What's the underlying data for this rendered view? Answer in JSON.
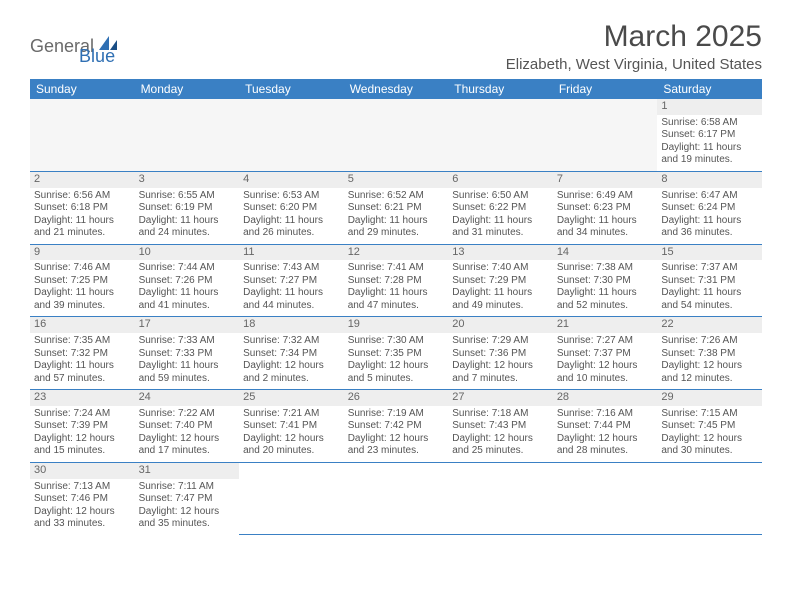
{
  "logo": {
    "part1": "General",
    "part2": "Blue"
  },
  "title": "March 2025",
  "location": "Elizabeth, West Virginia, United States",
  "colors": {
    "header_bg": "#3a80c4",
    "header_text": "#ffffff",
    "daynum_bg": "#eeeeee",
    "empty_bg": "#f6f6f6",
    "border": "#3a80c4",
    "text": "#555555",
    "logo_gray": "#6a6a6a",
    "logo_blue": "#2f6fb3"
  },
  "weekdays": [
    "Sunday",
    "Monday",
    "Tuesday",
    "Wednesday",
    "Thursday",
    "Friday",
    "Saturday"
  ],
  "weeks": [
    [
      null,
      null,
      null,
      null,
      null,
      null,
      {
        "n": "1",
        "sr": "Sunrise: 6:58 AM",
        "ss": "Sunset: 6:17 PM",
        "dl": "Daylight: 11 hours and 19 minutes."
      }
    ],
    [
      {
        "n": "2",
        "sr": "Sunrise: 6:56 AM",
        "ss": "Sunset: 6:18 PM",
        "dl": "Daylight: 11 hours and 21 minutes."
      },
      {
        "n": "3",
        "sr": "Sunrise: 6:55 AM",
        "ss": "Sunset: 6:19 PM",
        "dl": "Daylight: 11 hours and 24 minutes."
      },
      {
        "n": "4",
        "sr": "Sunrise: 6:53 AM",
        "ss": "Sunset: 6:20 PM",
        "dl": "Daylight: 11 hours and 26 minutes."
      },
      {
        "n": "5",
        "sr": "Sunrise: 6:52 AM",
        "ss": "Sunset: 6:21 PM",
        "dl": "Daylight: 11 hours and 29 minutes."
      },
      {
        "n": "6",
        "sr": "Sunrise: 6:50 AM",
        "ss": "Sunset: 6:22 PM",
        "dl": "Daylight: 11 hours and 31 minutes."
      },
      {
        "n": "7",
        "sr": "Sunrise: 6:49 AM",
        "ss": "Sunset: 6:23 PM",
        "dl": "Daylight: 11 hours and 34 minutes."
      },
      {
        "n": "8",
        "sr": "Sunrise: 6:47 AM",
        "ss": "Sunset: 6:24 PM",
        "dl": "Daylight: 11 hours and 36 minutes."
      }
    ],
    [
      {
        "n": "9",
        "sr": "Sunrise: 7:46 AM",
        "ss": "Sunset: 7:25 PM",
        "dl": "Daylight: 11 hours and 39 minutes."
      },
      {
        "n": "10",
        "sr": "Sunrise: 7:44 AM",
        "ss": "Sunset: 7:26 PM",
        "dl": "Daylight: 11 hours and 41 minutes."
      },
      {
        "n": "11",
        "sr": "Sunrise: 7:43 AM",
        "ss": "Sunset: 7:27 PM",
        "dl": "Daylight: 11 hours and 44 minutes."
      },
      {
        "n": "12",
        "sr": "Sunrise: 7:41 AM",
        "ss": "Sunset: 7:28 PM",
        "dl": "Daylight: 11 hours and 47 minutes."
      },
      {
        "n": "13",
        "sr": "Sunrise: 7:40 AM",
        "ss": "Sunset: 7:29 PM",
        "dl": "Daylight: 11 hours and 49 minutes."
      },
      {
        "n": "14",
        "sr": "Sunrise: 7:38 AM",
        "ss": "Sunset: 7:30 PM",
        "dl": "Daylight: 11 hours and 52 minutes."
      },
      {
        "n": "15",
        "sr": "Sunrise: 7:37 AM",
        "ss": "Sunset: 7:31 PM",
        "dl": "Daylight: 11 hours and 54 minutes."
      }
    ],
    [
      {
        "n": "16",
        "sr": "Sunrise: 7:35 AM",
        "ss": "Sunset: 7:32 PM",
        "dl": "Daylight: 11 hours and 57 minutes."
      },
      {
        "n": "17",
        "sr": "Sunrise: 7:33 AM",
        "ss": "Sunset: 7:33 PM",
        "dl": "Daylight: 11 hours and 59 minutes."
      },
      {
        "n": "18",
        "sr": "Sunrise: 7:32 AM",
        "ss": "Sunset: 7:34 PM",
        "dl": "Daylight: 12 hours and 2 minutes."
      },
      {
        "n": "19",
        "sr": "Sunrise: 7:30 AM",
        "ss": "Sunset: 7:35 PM",
        "dl": "Daylight: 12 hours and 5 minutes."
      },
      {
        "n": "20",
        "sr": "Sunrise: 7:29 AM",
        "ss": "Sunset: 7:36 PM",
        "dl": "Daylight: 12 hours and 7 minutes."
      },
      {
        "n": "21",
        "sr": "Sunrise: 7:27 AM",
        "ss": "Sunset: 7:37 PM",
        "dl": "Daylight: 12 hours and 10 minutes."
      },
      {
        "n": "22",
        "sr": "Sunrise: 7:26 AM",
        "ss": "Sunset: 7:38 PM",
        "dl": "Daylight: 12 hours and 12 minutes."
      }
    ],
    [
      {
        "n": "23",
        "sr": "Sunrise: 7:24 AM",
        "ss": "Sunset: 7:39 PM",
        "dl": "Daylight: 12 hours and 15 minutes."
      },
      {
        "n": "24",
        "sr": "Sunrise: 7:22 AM",
        "ss": "Sunset: 7:40 PM",
        "dl": "Daylight: 12 hours and 17 minutes."
      },
      {
        "n": "25",
        "sr": "Sunrise: 7:21 AM",
        "ss": "Sunset: 7:41 PM",
        "dl": "Daylight: 12 hours and 20 minutes."
      },
      {
        "n": "26",
        "sr": "Sunrise: 7:19 AM",
        "ss": "Sunset: 7:42 PM",
        "dl": "Daylight: 12 hours and 23 minutes."
      },
      {
        "n": "27",
        "sr": "Sunrise: 7:18 AM",
        "ss": "Sunset: 7:43 PM",
        "dl": "Daylight: 12 hours and 25 minutes."
      },
      {
        "n": "28",
        "sr": "Sunrise: 7:16 AM",
        "ss": "Sunset: 7:44 PM",
        "dl": "Daylight: 12 hours and 28 minutes."
      },
      {
        "n": "29",
        "sr": "Sunrise: 7:15 AM",
        "ss": "Sunset: 7:45 PM",
        "dl": "Daylight: 12 hours and 30 minutes."
      }
    ],
    [
      {
        "n": "30",
        "sr": "Sunrise: 7:13 AM",
        "ss": "Sunset: 7:46 PM",
        "dl": "Daylight: 12 hours and 33 minutes."
      },
      {
        "n": "31",
        "sr": "Sunrise: 7:11 AM",
        "ss": "Sunset: 7:47 PM",
        "dl": "Daylight: 12 hours and 35 minutes."
      },
      null,
      null,
      null,
      null,
      null
    ]
  ]
}
